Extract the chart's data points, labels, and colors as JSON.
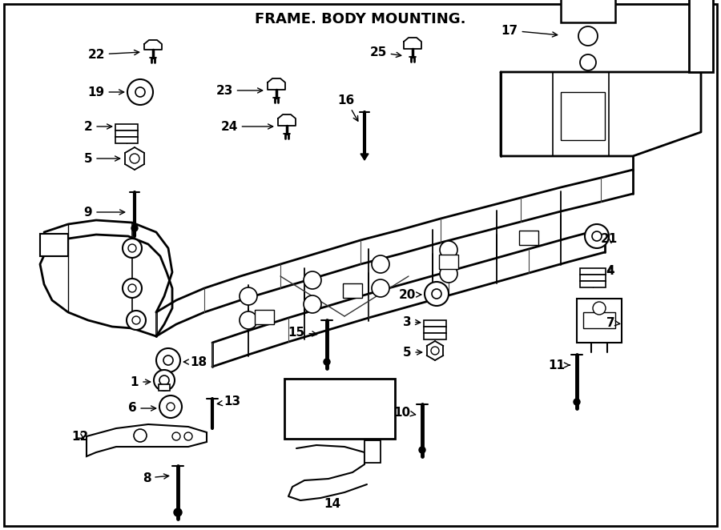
{
  "title": "FRAME. BODY MOUNTING.",
  "bg_color": "#ffffff",
  "line_color": "#000000",
  "fig_width": 9.0,
  "fig_height": 6.62,
  "dpi": 100
}
